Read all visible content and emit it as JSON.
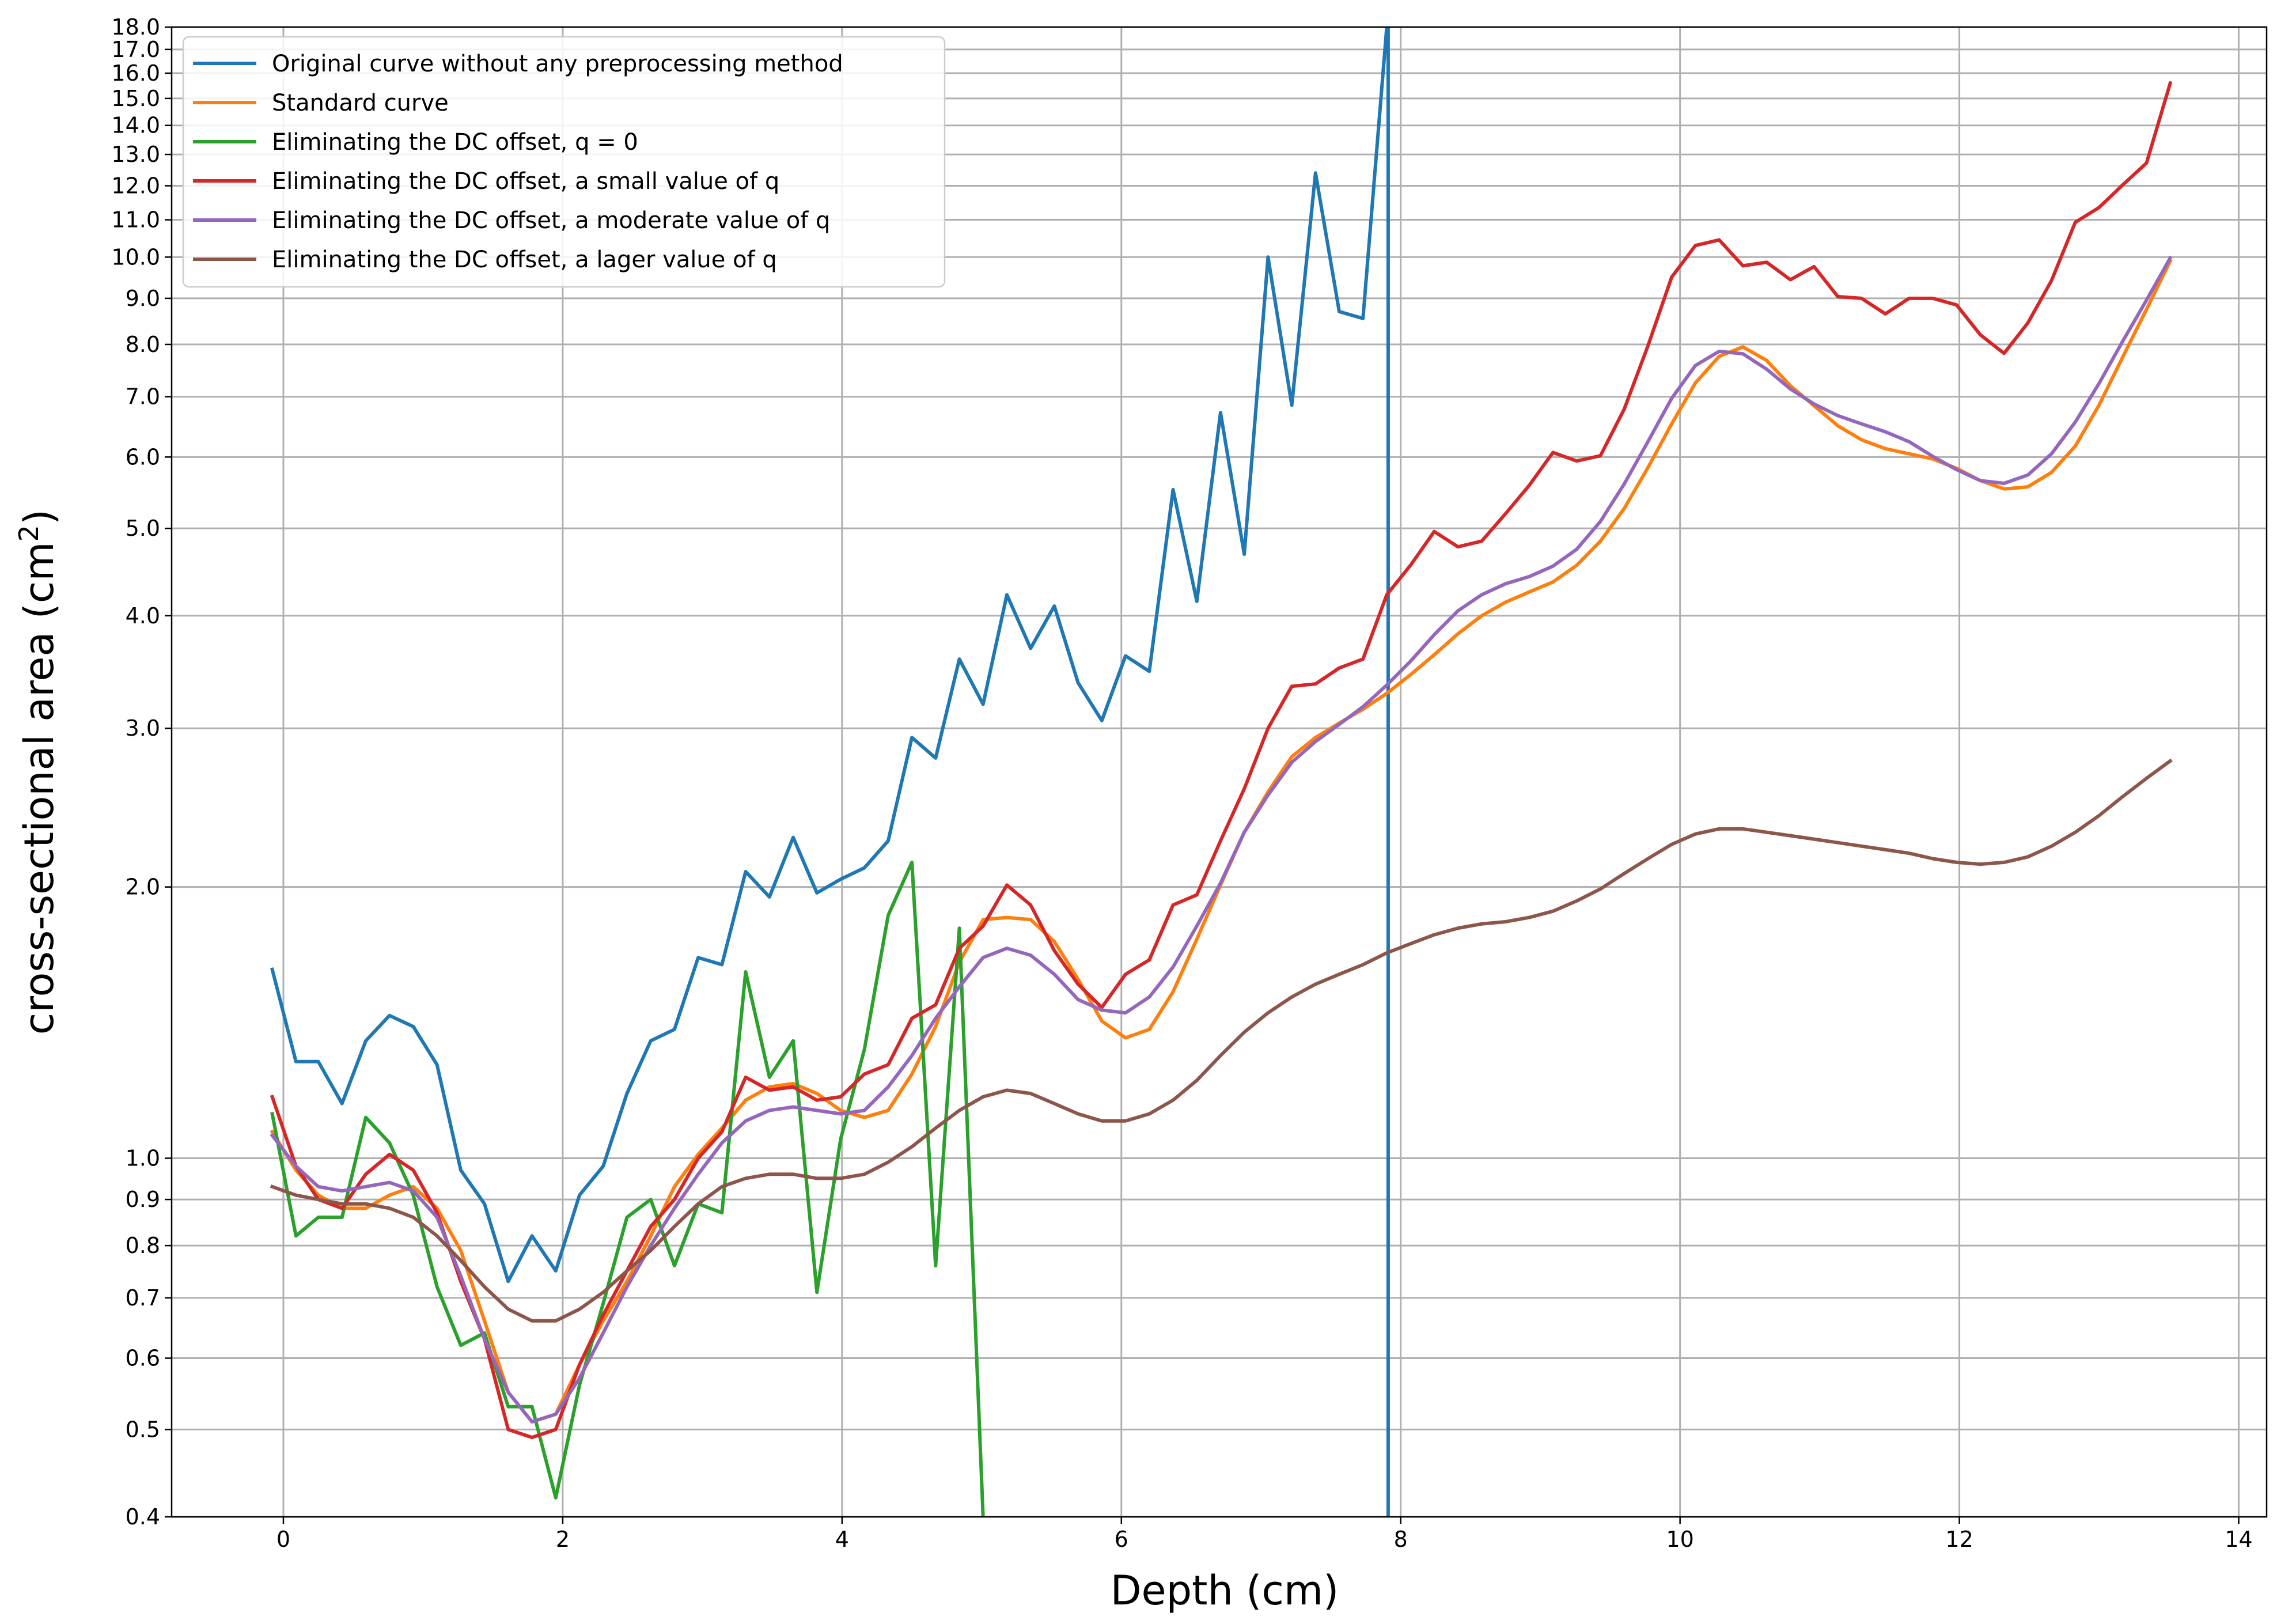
{
  "chart_data": {
    "type": "line",
    "title": "",
    "xlabel": "Depth (cm)",
    "ylabel_main": "cross-sectional area (cm",
    "ylabel_sup": "2",
    "ylabel_tail": ")",
    "yscale": "log",
    "xlim": [
      -0.8,
      14.2
    ],
    "ylim": [
      0.4,
      18.0
    ],
    "grid": true,
    "legend_position": "top-left",
    "xticks": [
      0,
      2,
      4,
      6,
      8,
      10,
      12,
      14
    ],
    "xtick_labels": [
      "0",
      "2",
      "4",
      "6",
      "8",
      "10",
      "12",
      "14"
    ],
    "yticks": [
      0.4,
      0.5,
      0.6,
      0.7,
      0.8,
      0.9,
      1.0,
      2.0,
      3.0,
      4.0,
      5.0,
      6.0,
      7.0,
      8.0,
      9.0,
      10.0,
      11.0,
      12.0,
      13.0,
      14.0,
      15.0,
      16.0,
      17.0,
      18.0
    ],
    "ytick_labels": [
      "0.4",
      "0.5",
      "0.6",
      "0.7",
      "0.8",
      "0.9",
      "1.0",
      "2.0",
      "3.0",
      "4.0",
      "5.0",
      "6.0",
      "7.0",
      "8.0",
      "9.0",
      "10.0",
      "11.0",
      "12.0",
      "13.0",
      "14.0",
      "15.0",
      "16.0",
      "17.0",
      "18.0"
    ],
    "series": [
      {
        "name": "Original curve without any preprocessing method",
        "color": "#1f77b4",
        "x": [
          -0.08,
          0.09,
          0.25,
          0.42,
          0.59,
          0.76,
          0.93,
          1.1,
          1.27,
          1.44,
          1.61,
          1.78,
          1.95,
          2.12,
          2.29,
          2.46,
          2.63,
          2.8,
          2.97,
          3.14,
          3.31,
          3.48,
          3.65,
          3.82,
          3.99,
          4.16,
          4.33,
          4.5,
          4.67,
          4.84,
          5.01,
          5.18,
          5.35,
          5.52,
          5.69,
          5.86,
          6.03,
          6.2,
          6.37,
          6.54,
          6.71,
          6.88,
          7.05,
          7.22,
          7.39,
          7.56,
          7.73,
          7.9,
          7.91,
          7.91
        ],
        "y": [
          1.62,
          1.28,
          1.28,
          1.15,
          1.35,
          1.44,
          1.4,
          1.27,
          0.97,
          0.89,
          0.73,
          0.82,
          0.75,
          0.91,
          0.98,
          1.18,
          1.35,
          1.39,
          1.67,
          1.64,
          2.08,
          1.95,
          2.27,
          1.97,
          2.04,
          2.1,
          2.25,
          2.93,
          2.78,
          3.58,
          3.19,
          4.22,
          3.68,
          4.1,
          3.37,
          3.06,
          3.61,
          3.47,
          5.52,
          4.15,
          6.72,
          4.68,
          10.0,
          6.85,
          12.4,
          8.7,
          8.55,
          18.0,
          18.0,
          0.4
        ]
      },
      {
        "name": "Standard curve",
        "color": "#ff7f0e",
        "x": [
          -0.08,
          0.09,
          0.25,
          0.42,
          0.59,
          0.76,
          0.93,
          1.1,
          1.27,
          1.44,
          1.61,
          1.78,
          1.95,
          2.12,
          2.29,
          2.46,
          2.63,
          2.8,
          2.97,
          3.14,
          3.31,
          3.48,
          3.65,
          3.82,
          3.99,
          4.16,
          4.33,
          4.5,
          4.67,
          4.84,
          5.01,
          5.18,
          5.35,
          5.52,
          5.69,
          5.86,
          6.03,
          6.2,
          6.37,
          6.54,
          6.71,
          6.88,
          7.05,
          7.22,
          7.39,
          7.56,
          7.73,
          7.9,
          8.07,
          8.24,
          8.41,
          8.58,
          8.75,
          8.92,
          9.09,
          9.26,
          9.43,
          9.6,
          9.77,
          9.94,
          10.11,
          10.28,
          10.45,
          10.62,
          10.79,
          10.96,
          11.13,
          11.3,
          11.47,
          11.64,
          11.81,
          11.98,
          12.15,
          12.32,
          12.49,
          12.66,
          12.83,
          13.0,
          13.17,
          13.34,
          13.51
        ],
        "y": [
          1.07,
          0.97,
          0.91,
          0.88,
          0.88,
          0.91,
          0.93,
          0.88,
          0.79,
          0.66,
          0.55,
          0.51,
          0.52,
          0.59,
          0.66,
          0.73,
          0.82,
          0.93,
          1.01,
          1.08,
          1.16,
          1.2,
          1.21,
          1.18,
          1.13,
          1.11,
          1.13,
          1.24,
          1.4,
          1.65,
          1.84,
          1.85,
          1.84,
          1.74,
          1.58,
          1.42,
          1.36,
          1.39,
          1.53,
          1.75,
          2.01,
          2.3,
          2.55,
          2.79,
          2.93,
          3.04,
          3.15,
          3.28,
          3.44,
          3.62,
          3.82,
          4.0,
          4.14,
          4.25,
          4.36,
          4.55,
          4.84,
          5.26,
          5.84,
          6.53,
          7.25,
          7.76,
          7.95,
          7.68,
          7.2,
          6.84,
          6.5,
          6.27,
          6.13,
          6.05,
          5.97,
          5.83,
          5.65,
          5.53,
          5.56,
          5.77,
          6.17,
          6.85,
          7.75,
          8.75,
          9.9
        ]
      },
      {
        "name": "Eliminating the DC offset, q = 0",
        "color": "#2ca02c",
        "x": [
          -0.08,
          0.09,
          0.25,
          0.42,
          0.59,
          0.76,
          0.93,
          1.1,
          1.27,
          1.44,
          1.61,
          1.78,
          1.95,
          2.12,
          2.29,
          2.46,
          2.63,
          2.8,
          2.97,
          3.14,
          3.31,
          3.48,
          3.65,
          3.82,
          3.99,
          4.16,
          4.33,
          4.5,
          4.67,
          4.84,
          5.01
        ],
        "y": [
          1.12,
          0.82,
          0.86,
          0.86,
          1.11,
          1.04,
          0.91,
          0.72,
          0.62,
          0.64,
          0.53,
          0.53,
          0.42,
          0.56,
          0.69,
          0.86,
          0.9,
          0.76,
          0.89,
          0.87,
          1.61,
          1.23,
          1.35,
          0.71,
          1.05,
          1.32,
          1.86,
          2.13,
          0.76,
          1.8,
          0.4
        ]
      },
      {
        "name": "Eliminating the DC offset, a small value of q",
        "color": "#d62728",
        "x": [
          -0.08,
          0.09,
          0.25,
          0.42,
          0.59,
          0.76,
          0.93,
          1.1,
          1.27,
          1.44,
          1.61,
          1.78,
          1.95,
          2.12,
          2.29,
          2.46,
          2.63,
          2.8,
          2.97,
          3.14,
          3.31,
          3.48,
          3.65,
          3.82,
          3.99,
          4.16,
          4.33,
          4.5,
          4.67,
          4.84,
          5.01,
          5.18,
          5.35,
          5.52,
          5.69,
          5.86,
          6.03,
          6.2,
          6.37,
          6.54,
          6.71,
          6.88,
          7.05,
          7.22,
          7.39,
          7.56,
          7.73,
          7.9,
          8.07,
          8.24,
          8.41,
          8.58,
          8.75,
          8.92,
          9.09,
          9.26,
          9.43,
          9.6,
          9.77,
          9.94,
          10.11,
          10.28,
          10.45,
          10.62,
          10.79,
          10.96,
          11.13,
          11.3,
          11.47,
          11.64,
          11.81,
          11.98,
          12.15,
          12.32,
          12.49,
          12.66,
          12.83,
          13.0,
          13.17,
          13.34,
          13.51
        ],
        "y": [
          1.17,
          0.98,
          0.9,
          0.88,
          0.96,
          1.01,
          0.97,
          0.87,
          0.73,
          0.63,
          0.5,
          0.49,
          0.5,
          0.59,
          0.67,
          0.75,
          0.84,
          0.9,
          1.0,
          1.07,
          1.23,
          1.19,
          1.2,
          1.16,
          1.17,
          1.24,
          1.27,
          1.43,
          1.48,
          1.71,
          1.81,
          2.01,
          1.91,
          1.7,
          1.56,
          1.47,
          1.6,
          1.66,
          1.91,
          1.96,
          2.25,
          2.57,
          3.0,
          3.34,
          3.36,
          3.5,
          3.58,
          4.22,
          4.55,
          4.96,
          4.77,
          4.84,
          5.19,
          5.58,
          6.07,
          5.94,
          6.02,
          6.78,
          7.97,
          9.5,
          10.3,
          10.45,
          9.78,
          9.87,
          9.44,
          9.76,
          9.04,
          9.0,
          8.65,
          9.0,
          9.0,
          8.85,
          8.2,
          7.82,
          8.45,
          9.42,
          10.93,
          11.35,
          12.03,
          12.72,
          15.6
        ]
      },
      {
        "name": "Eliminating the DC offset, a moderate value of q",
        "color": "#9467bd",
        "x": [
          -0.08,
          0.09,
          0.25,
          0.42,
          0.59,
          0.76,
          0.93,
          1.1,
          1.27,
          1.44,
          1.61,
          1.78,
          1.95,
          2.12,
          2.29,
          2.46,
          2.63,
          2.8,
          2.97,
          3.14,
          3.31,
          3.48,
          3.65,
          3.82,
          3.99,
          4.16,
          4.33,
          4.5,
          4.67,
          4.84,
          5.01,
          5.18,
          5.35,
          5.52,
          5.69,
          5.86,
          6.03,
          6.2,
          6.37,
          6.54,
          6.71,
          6.88,
          7.05,
          7.22,
          7.39,
          7.56,
          7.73,
          7.9,
          8.07,
          8.24,
          8.41,
          8.58,
          8.75,
          8.92,
          9.09,
          9.26,
          9.43,
          9.6,
          9.77,
          9.94,
          10.11,
          10.28,
          10.45,
          10.62,
          10.79,
          10.96,
          11.13,
          11.3,
          11.47,
          11.64,
          11.81,
          11.98,
          12.15,
          12.32,
          12.49,
          12.66,
          12.83,
          13.0,
          13.17,
          13.34,
          13.51
        ],
        "y": [
          1.06,
          0.98,
          0.93,
          0.92,
          0.93,
          0.94,
          0.92,
          0.86,
          0.74,
          0.63,
          0.55,
          0.51,
          0.52,
          0.57,
          0.64,
          0.72,
          0.8,
          0.88,
          0.96,
          1.04,
          1.1,
          1.13,
          1.14,
          1.13,
          1.12,
          1.13,
          1.2,
          1.3,
          1.43,
          1.55,
          1.67,
          1.71,
          1.68,
          1.6,
          1.5,
          1.46,
          1.45,
          1.51,
          1.63,
          1.81,
          2.02,
          2.3,
          2.53,
          2.75,
          2.9,
          3.03,
          3.17,
          3.35,
          3.56,
          3.81,
          4.05,
          4.22,
          4.34,
          4.42,
          4.54,
          4.74,
          5.09,
          5.6,
          6.24,
          6.97,
          7.58,
          7.86,
          7.81,
          7.51,
          7.14,
          6.87,
          6.67,
          6.53,
          6.4,
          6.24,
          6.01,
          5.81,
          5.65,
          5.61,
          5.73,
          6.05,
          6.56,
          7.24,
          8.07,
          8.96,
          9.98
        ]
      },
      {
        "name": "Eliminating the DC offset, a lager value of q",
        "color": "#8c564b",
        "x": [
          -0.08,
          0.09,
          0.25,
          0.42,
          0.59,
          0.76,
          0.93,
          1.1,
          1.27,
          1.44,
          1.61,
          1.78,
          1.95,
          2.12,
          2.29,
          2.46,
          2.63,
          2.8,
          2.97,
          3.14,
          3.31,
          3.48,
          3.65,
          3.82,
          3.99,
          4.16,
          4.33,
          4.5,
          4.67,
          4.84,
          5.01,
          5.18,
          5.35,
          5.52,
          5.69,
          5.86,
          6.03,
          6.2,
          6.37,
          6.54,
          6.71,
          6.88,
          7.05,
          7.22,
          7.39,
          7.56,
          7.73,
          7.9,
          8.07,
          8.24,
          8.41,
          8.58,
          8.75,
          8.92,
          9.09,
          9.26,
          9.43,
          9.6,
          9.77,
          9.94,
          10.11,
          10.28,
          10.45,
          10.62,
          10.79,
          10.96,
          11.13,
          11.3,
          11.47,
          11.64,
          11.81,
          11.98,
          12.15,
          12.32,
          12.49,
          12.66,
          12.83,
          13.0,
          13.17,
          13.34,
          13.51
        ],
        "y": [
          0.93,
          0.91,
          0.9,
          0.89,
          0.89,
          0.88,
          0.86,
          0.82,
          0.77,
          0.72,
          0.68,
          0.66,
          0.66,
          0.68,
          0.71,
          0.75,
          0.79,
          0.84,
          0.89,
          0.93,
          0.95,
          0.96,
          0.96,
          0.95,
          0.95,
          0.96,
          0.99,
          1.03,
          1.08,
          1.13,
          1.17,
          1.19,
          1.18,
          1.15,
          1.12,
          1.1,
          1.1,
          1.12,
          1.16,
          1.22,
          1.3,
          1.38,
          1.45,
          1.51,
          1.56,
          1.6,
          1.64,
          1.69,
          1.73,
          1.77,
          1.8,
          1.82,
          1.83,
          1.85,
          1.88,
          1.93,
          1.99,
          2.07,
          2.15,
          2.23,
          2.29,
          2.32,
          2.32,
          2.3,
          2.28,
          2.26,
          2.24,
          2.22,
          2.2,
          2.18,
          2.15,
          2.13,
          2.12,
          2.13,
          2.16,
          2.22,
          2.3,
          2.4,
          2.52,
          2.64,
          2.76
        ]
      }
    ]
  }
}
